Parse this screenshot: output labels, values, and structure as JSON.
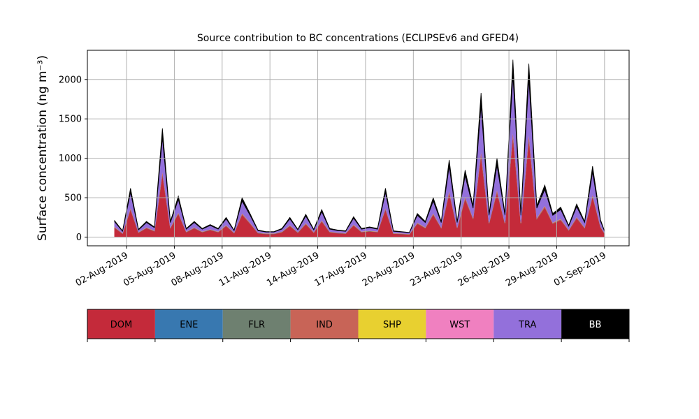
{
  "chart_data": {
    "type": "stacked_area",
    "title": "Source contribution to BC concentrations (ECLIPSEv6 and GFED4)",
    "y_label": "Surface concentration (ng m⁻³)",
    "x": [
      "2019-08-01T06:00",
      "2019-08-01T18:00",
      "2019-08-02T06:00",
      "2019-08-02T18:00",
      "2019-08-03T06:00",
      "2019-08-03T18:00",
      "2019-08-04T06:00",
      "2019-08-04T18:00",
      "2019-08-05T06:00",
      "2019-08-05T18:00",
      "2019-08-06T06:00",
      "2019-08-06T18:00",
      "2019-08-07T06:00",
      "2019-08-07T18:00",
      "2019-08-08T06:00",
      "2019-08-08T18:00",
      "2019-08-09T06:00",
      "2019-08-09T18:00",
      "2019-08-10T06:00",
      "2019-08-10T18:00",
      "2019-08-11T06:00",
      "2019-08-11T18:00",
      "2019-08-12T06:00",
      "2019-08-12T18:00",
      "2019-08-13T06:00",
      "2019-08-13T18:00",
      "2019-08-14T06:00",
      "2019-08-14T18:00",
      "2019-08-15T06:00",
      "2019-08-15T18:00",
      "2019-08-16T06:00",
      "2019-08-16T18:00",
      "2019-08-17T06:00",
      "2019-08-17T18:00",
      "2019-08-18T06:00",
      "2019-08-18T18:00",
      "2019-08-19T06:00",
      "2019-08-19T18:00",
      "2019-08-20T06:00",
      "2019-08-20T18:00",
      "2019-08-21T06:00",
      "2019-08-21T18:00",
      "2019-08-22T06:00",
      "2019-08-22T18:00",
      "2019-08-23T06:00",
      "2019-08-23T18:00",
      "2019-08-24T06:00",
      "2019-08-24T18:00",
      "2019-08-25T06:00",
      "2019-08-25T18:00",
      "2019-08-26T06:00",
      "2019-08-26T18:00",
      "2019-08-27T06:00",
      "2019-08-27T18:00",
      "2019-08-28T06:00",
      "2019-08-28T18:00",
      "2019-08-29T06:00",
      "2019-08-29T18:00",
      "2019-08-30T06:00",
      "2019-08-30T18:00",
      "2019-08-31T06:00",
      "2019-08-31T18:00",
      "2019-09-01T00:00"
    ],
    "series": [
      {
        "name": "DOM",
        "color": "#c42a3a",
        "values": [
          120,
          45,
          350,
          57,
          114,
          74,
          800,
          114,
          295,
          63,
          114,
          63,
          91,
          63,
          142,
          51,
          285,
          171,
          51,
          40,
          40,
          63,
          142,
          57,
          165,
          57,
          200,
          63,
          51,
          45,
          148,
          63,
          74,
          63,
          350,
          45,
          40,
          34,
          171,
          114,
          285,
          114,
          560,
          114,
          485,
          228,
          1040,
          171,
          570,
          171,
          1280,
          171,
          1250,
          228,
          376,
          171,
          217,
          85,
          240,
          114,
          513,
          125,
          45
        ]
      },
      {
        "name": "ENE",
        "color": "#3878b0",
        "values": [
          2,
          2,
          2,
          2,
          2,
          2,
          2,
          2,
          2,
          2,
          2,
          2,
          2,
          2,
          2,
          2,
          2,
          2,
          2,
          2,
          2,
          2,
          2,
          2,
          2,
          2,
          2,
          2,
          2,
          2,
          2,
          2,
          2,
          2,
          2,
          2,
          2,
          2,
          2,
          2,
          2,
          2,
          2,
          2,
          2,
          2,
          2,
          2,
          2,
          2,
          2,
          2,
          2,
          2,
          2,
          2,
          2,
          2,
          2,
          2,
          2,
          2,
          2
        ]
      },
      {
        "name": "FLR",
        "color": "#6e8070",
        "values": [
          1,
          1,
          1,
          1,
          1,
          1,
          1,
          1,
          1,
          1,
          1,
          1,
          1,
          1,
          1,
          1,
          1,
          1,
          1,
          1,
          1,
          1,
          1,
          1,
          1,
          1,
          1,
          1,
          1,
          1,
          1,
          1,
          1,
          1,
          1,
          1,
          1,
          1,
          1,
          1,
          1,
          1,
          1,
          1,
          1,
          1,
          1,
          1,
          1,
          1,
          1,
          1,
          1,
          1,
          1,
          1,
          1,
          1,
          1,
          1,
          1,
          1,
          1
        ]
      },
      {
        "name": "IND",
        "color": "#c86457",
        "values": [
          6,
          2,
          18,
          3,
          6,
          4,
          40,
          6,
          15,
          3,
          6,
          3,
          5,
          3,
          7,
          3,
          15,
          9,
          3,
          2,
          2,
          3,
          7,
          3,
          9,
          3,
          10,
          3,
          3,
          2,
          8,
          3,
          4,
          3,
          18,
          2,
          2,
          2,
          9,
          6,
          15,
          6,
          29,
          6,
          25,
          12,
          55,
          9,
          30,
          9,
          68,
          9,
          66,
          12,
          20,
          9,
          11,
          5,
          13,
          6,
          27,
          7,
          2
        ]
      },
      {
        "name": "SHP",
        "color": "#e8d030",
        "values": [
          2,
          2,
          2,
          2,
          2,
          2,
          2,
          2,
          2,
          2,
          2,
          2,
          2,
          2,
          2,
          2,
          2,
          2,
          2,
          2,
          2,
          2,
          2,
          2,
          2,
          2,
          2,
          2,
          2,
          2,
          2,
          2,
          2,
          2,
          2,
          2,
          2,
          2,
          2,
          2,
          2,
          2,
          2,
          2,
          2,
          2,
          2,
          2,
          2,
          2,
          2,
          2,
          2,
          2,
          2,
          2,
          2,
          2,
          2,
          2,
          2,
          2,
          2
        ]
      },
      {
        "name": "WST",
        "color": "#f080c0",
        "values": [
          2,
          2,
          2,
          2,
          2,
          2,
          2,
          2,
          2,
          2,
          2,
          2,
          2,
          2,
          2,
          2,
          2,
          2,
          2,
          2,
          2,
          2,
          2,
          2,
          2,
          2,
          2,
          2,
          2,
          2,
          2,
          2,
          2,
          2,
          2,
          2,
          2,
          2,
          2,
          2,
          2,
          2,
          2,
          2,
          2,
          2,
          2,
          2,
          2,
          2,
          2,
          2,
          2,
          2,
          2,
          2,
          2,
          2,
          2,
          2,
          2,
          2,
          2
        ]
      },
      {
        "name": "TRA",
        "color": "#9370db",
        "values": [
          62,
          20,
          190,
          25,
          58,
          35,
          410,
          58,
          160,
          28,
          58,
          28,
          45,
          28,
          75,
          22,
          150,
          90,
          22,
          16,
          16,
          28,
          75,
          25,
          86,
          25,
          105,
          28,
          22,
          20,
          77,
          28,
          35,
          28,
          190,
          20,
          16,
          13,
          90,
          58,
          150,
          58,
          300,
          58,
          260,
          120,
          560,
          90,
          300,
          90,
          690,
          90,
          680,
          120,
          200,
          90,
          115,
          42,
          125,
          58,
          275,
          62,
          20
        ]
      },
      {
        "name": "BB",
        "color": "#000000",
        "values": [
          15,
          6,
          55,
          8,
          15,
          10,
          123,
          15,
          43,
          9,
          15,
          9,
          12,
          9,
          19,
          7,
          43,
          23,
          7,
          5,
          5,
          9,
          19,
          8,
          23,
          8,
          28,
          9,
          7,
          6,
          20,
          9,
          10,
          9,
          55,
          6,
          5,
          4,
          23,
          15,
          43,
          15,
          84,
          15,
          73,
          33,
          168,
          23,
          93,
          23,
          205,
          23,
          197,
          33,
          57,
          23,
          30,
          11,
          35,
          15,
          78,
          19,
          6
        ]
      }
    ],
    "xlim": [
      "2019-07-30T13:00",
      "2019-09-02T13:00"
    ],
    "xticks": [
      {
        "value": "2019-08-02",
        "label": "02-Aug-2019"
      },
      {
        "value": "2019-08-05",
        "label": "05-Aug-2019"
      },
      {
        "value": "2019-08-08",
        "label": "08-Aug-2019"
      },
      {
        "value": "2019-08-11",
        "label": "11-Aug-2019"
      },
      {
        "value": "2019-08-14",
        "label": "14-Aug-2019"
      },
      {
        "value": "2019-08-17",
        "label": "17-Aug-2019"
      },
      {
        "value": "2019-08-20",
        "label": "20-Aug-2019"
      },
      {
        "value": "2019-08-23",
        "label": "23-Aug-2019"
      },
      {
        "value": "2019-08-26",
        "label": "26-Aug-2019"
      },
      {
        "value": "2019-08-29",
        "label": "29-Aug-2019"
      },
      {
        "value": "2019-09-01",
        "label": "01-Sep-2019"
      }
    ],
    "ylim": [
      -110,
      2370
    ],
    "yticks": [
      0,
      500,
      1000,
      1500,
      2000
    ],
    "grid": true
  }
}
